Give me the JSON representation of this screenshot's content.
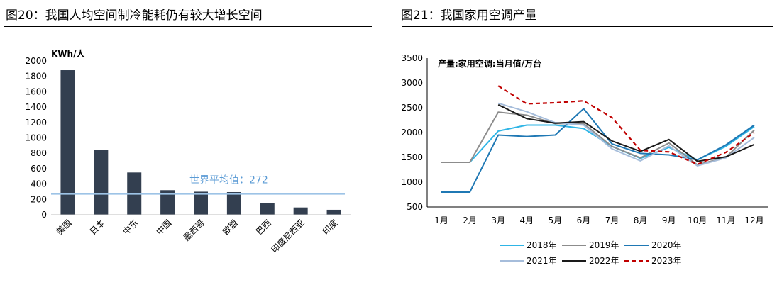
{
  "left": {
    "title": "图20：我国人均空间制冷能耗仍有较大增长空间",
    "chart_data": {
      "type": "bar",
      "title": "图20：我国人均空间制冷能耗仍有较大增长空间",
      "unit_label": "KWh/人",
      "categories": [
        "美国",
        "日本",
        "中东",
        "中国",
        "墨西哥",
        "欧盟",
        "巴西",
        "印度尼西亚",
        "印度"
      ],
      "values": [
        1880,
        840,
        550,
        320,
        300,
        295,
        150,
        95,
        65
      ],
      "ylim": [
        0,
        2000
      ],
      "yticks": [
        "0",
        "200",
        "400",
        "600",
        "800",
        "1000",
        "1200",
        "1400",
        "1600",
        "1800",
        "2000"
      ],
      "bar_color": "#333f50",
      "reference_line": {
        "label": "世界平均值：272",
        "value": 272,
        "color": "#9dc3e6"
      }
    }
  },
  "right": {
    "title": "图21：我国家用空调产量",
    "chart_data": {
      "type": "line",
      "title": "图21：我国家用空调产量",
      "unit_label": "产量:家用空调:当月值/万台",
      "categories": [
        "1月",
        "2月",
        "3月",
        "4月",
        "5月",
        "6月",
        "7月",
        "8月",
        "9月",
        "10月",
        "11月",
        "12月"
      ],
      "ylim": [
        500,
        3500
      ],
      "yticks": [
        "500",
        "1000",
        "1500",
        "2000",
        "2500",
        "3000",
        "3500"
      ],
      "legend_position": "bottom",
      "series": [
        {
          "name": "2018年",
          "color": "#2fb5e6",
          "dash": "solid",
          "values": [
            1400,
            1400,
            2030,
            2150,
            2150,
            2080,
            1720,
            1480,
            1700,
            1450,
            1720,
            2120
          ]
        },
        {
          "name": "2019年",
          "color": "#8c8c8c",
          "dash": "solid",
          "values": [
            1400,
            1400,
            2410,
            2350,
            2180,
            2180,
            1720,
            1490,
            1790,
            1350,
            1500,
            2050
          ]
        },
        {
          "name": "2020年",
          "color": "#1f78b4",
          "dash": "solid",
          "values": [
            800,
            800,
            1950,
            1920,
            1950,
            2480,
            1770,
            1580,
            1550,
            1450,
            1750,
            2150
          ]
        },
        {
          "name": "2021年",
          "color": "#a6bddb",
          "dash": "solid",
          "values": [
            null,
            null,
            2590,
            2420,
            2200,
            2150,
            1670,
            1430,
            1730,
            1330,
            1490,
            1900
          ]
        },
        {
          "name": "2022年",
          "color": "#1a1a1a",
          "dash": "solid",
          "values": [
            null,
            null,
            2560,
            2280,
            2190,
            2220,
            1830,
            1620,
            1860,
            1420,
            1510,
            1760
          ]
        },
        {
          "name": "2023年",
          "color": "#c00000",
          "dash": "dashed",
          "values": [
            null,
            null,
            2940,
            2580,
            2600,
            2640,
            2300,
            1640,
            1610,
            1360,
            1600,
            2000
          ]
        }
      ]
    }
  }
}
